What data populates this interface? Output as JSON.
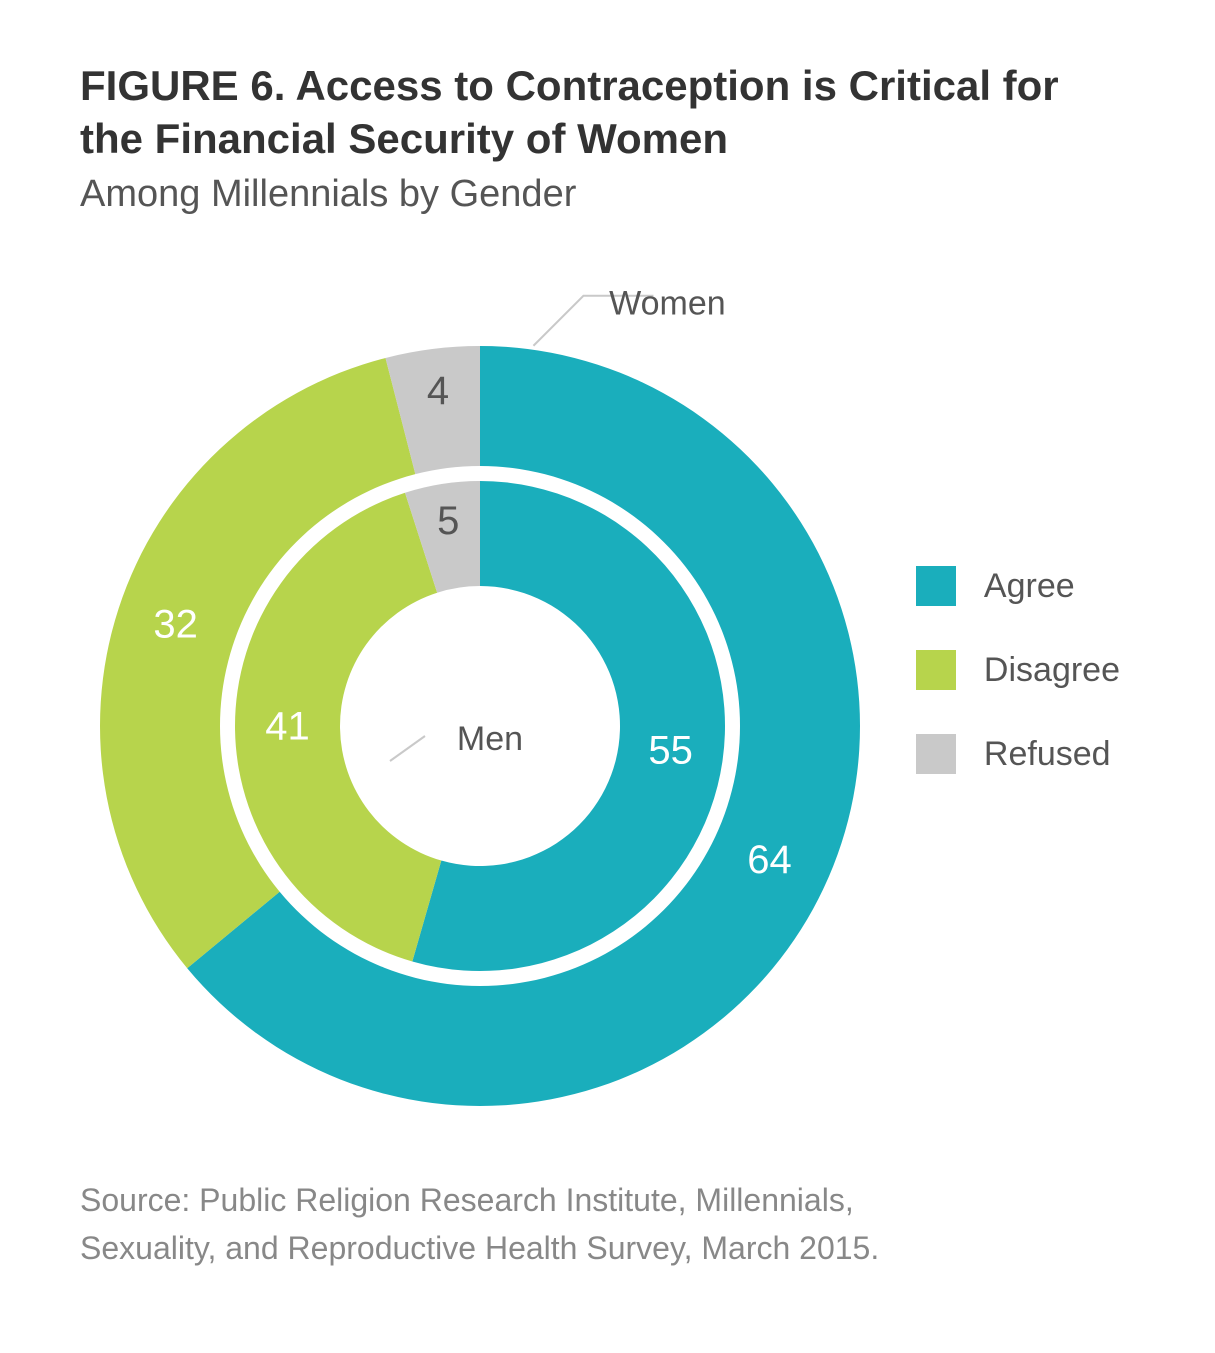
{
  "figure_label": "FIGURE 6.",
  "title": "Access to Contraception is Critical for the Financial Security of Women",
  "title_line1": "FIGURE 6. Access to Contraception is Critical for",
  "title_line2": "the Financial Security of Women",
  "subtitle": "Among Millennials by Gender",
  "source_line1": "Source: Public Religion Research Institute, Millennials,",
  "source_line2": "Sexuality, and Reproductive Health Survey, March 2015.",
  "chart": {
    "type": "nested-donut",
    "background_color": "#ffffff",
    "colors": {
      "agree": "#1aaebc",
      "disagree": "#b7d44c",
      "refused": "#c9c9c9",
      "gap": "#ffffff",
      "leader": "#c9c9c9",
      "text_light": "#ffffff",
      "text_dark": "#666666",
      "title_color": "#333333",
      "subtitle_color": "#555555",
      "source_color": "#888888"
    },
    "start_angle_deg": 0,
    "direction": "clockwise",
    "outer_ring": {
      "label": "Women",
      "inner_radius": 260,
      "outer_radius": 380,
      "segments": [
        {
          "key": "agree",
          "value": 64
        },
        {
          "key": "disagree",
          "value": 32
        },
        {
          "key": "refused",
          "value": 4
        }
      ]
    },
    "inner_ring": {
      "label": "Men",
      "inner_radius": 140,
      "outer_radius": 245,
      "segments": [
        {
          "key": "agree",
          "value": 55
        },
        {
          "key": "disagree",
          "value": 41
        },
        {
          "key": "refused",
          "value": 5
        }
      ]
    },
    "ring_gap": 15,
    "legend": {
      "items": [
        {
          "key": "agree",
          "label": "Agree"
        },
        {
          "key": "disagree",
          "label": "Disagree"
        },
        {
          "key": "refused",
          "label": "Refused"
        }
      ],
      "swatch_size": 40,
      "font_size": 34
    },
    "value_label_fontsize": 40,
    "ring_label_fontsize": 34,
    "title_fontsize": 42,
    "subtitle_fontsize": 38,
    "source_fontsize": 32
  }
}
